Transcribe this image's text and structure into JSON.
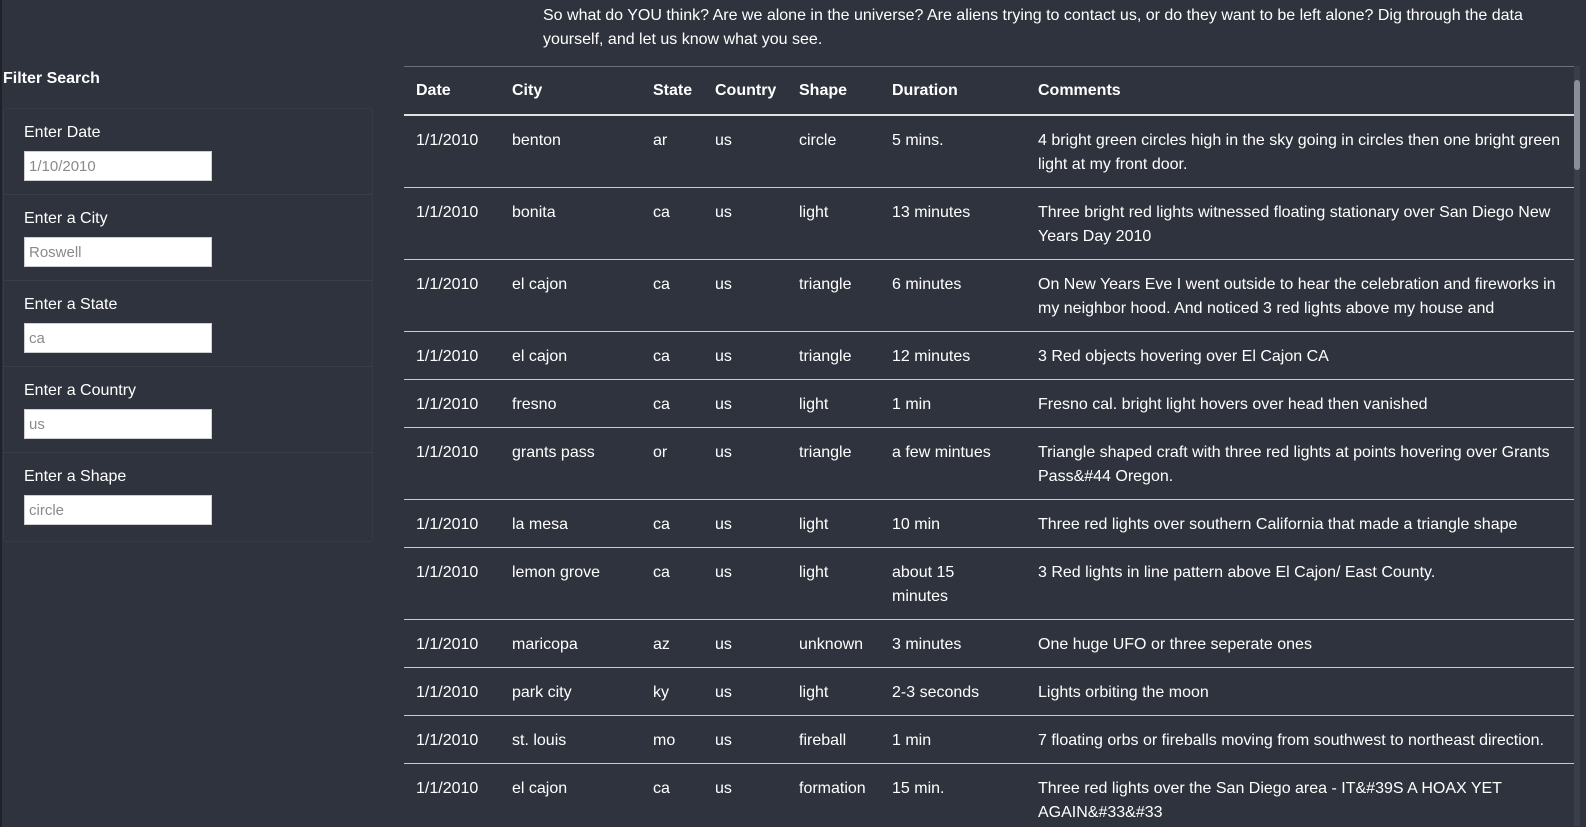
{
  "intro": {
    "text": "So what do YOU think? Are we alone in the universe? Are aliens trying to contact us, or do they want to be left alone? Dig through the data yourself, and let us know what you see."
  },
  "filters": {
    "title": "Filter Search",
    "items": [
      {
        "label": "Enter Date",
        "placeholder": "1/10/2010"
      },
      {
        "label": "Enter a City",
        "placeholder": "Roswell"
      },
      {
        "label": "Enter a State",
        "placeholder": "ca"
      },
      {
        "label": "Enter a Country",
        "placeholder": "us"
      },
      {
        "label": "Enter a Shape",
        "placeholder": "circle"
      }
    ]
  },
  "table": {
    "headers": [
      "Date",
      "City",
      "State",
      "Country",
      "Shape",
      "Duration",
      "Comments"
    ],
    "rows": [
      [
        "1/1/2010",
        "benton",
        "ar",
        "us",
        "circle",
        "5 mins.",
        "4 bright green circles high in the sky going in circles then one bright green light at my front door."
      ],
      [
        "1/1/2010",
        "bonita",
        "ca",
        "us",
        "light",
        "13 minutes",
        "Three bright red lights witnessed floating stationary over San Diego New Years Day 2010"
      ],
      [
        "1/1/2010",
        "el cajon",
        "ca",
        "us",
        "triangle",
        "6 minutes",
        "On New Years Eve I went outside to hear the celebration and fireworks in my neighbor hood. And noticed 3 red lights above my house and"
      ],
      [
        "1/1/2010",
        "el cajon",
        "ca",
        "us",
        "triangle",
        "12 minutes",
        "3 Red objects hovering over El Cajon CA"
      ],
      [
        "1/1/2010",
        "fresno",
        "ca",
        "us",
        "light",
        "1 min",
        "Fresno cal. bright light hovers over head then vanished"
      ],
      [
        "1/1/2010",
        "grants pass",
        "or",
        "us",
        "triangle",
        "a few mintues",
        "Triangle shaped craft with three red lights at points hovering over Grants Pass&#44 Oregon."
      ],
      [
        "1/1/2010",
        "la mesa",
        "ca",
        "us",
        "light",
        "10 min",
        "Three red lights over southern California that made a triangle shape"
      ],
      [
        "1/1/2010",
        "lemon grove",
        "ca",
        "us",
        "light",
        "about 15 minutes",
        "3 Red lights in line pattern above El Cajon/ East County."
      ],
      [
        "1/1/2010",
        "maricopa",
        "az",
        "us",
        "unknown",
        "3 minutes",
        "One huge UFO or three seperate ones"
      ],
      [
        "1/1/2010",
        "park city",
        "ky",
        "us",
        "light",
        "2-3 seconds",
        "Lights orbiting the moon"
      ],
      [
        "1/1/2010",
        "st. louis",
        "mo",
        "us",
        "fireball",
        "1 min",
        "7 floating orbs or fireballs moving from southwest to northeast direction."
      ],
      [
        "1/1/2010",
        "el cajon",
        "ca",
        "us",
        "formation",
        "15 min.",
        "Three red lights over the San Diego area - IT&#39S A HOAX YET AGAIN&#33&#33"
      ]
    ]
  }
}
